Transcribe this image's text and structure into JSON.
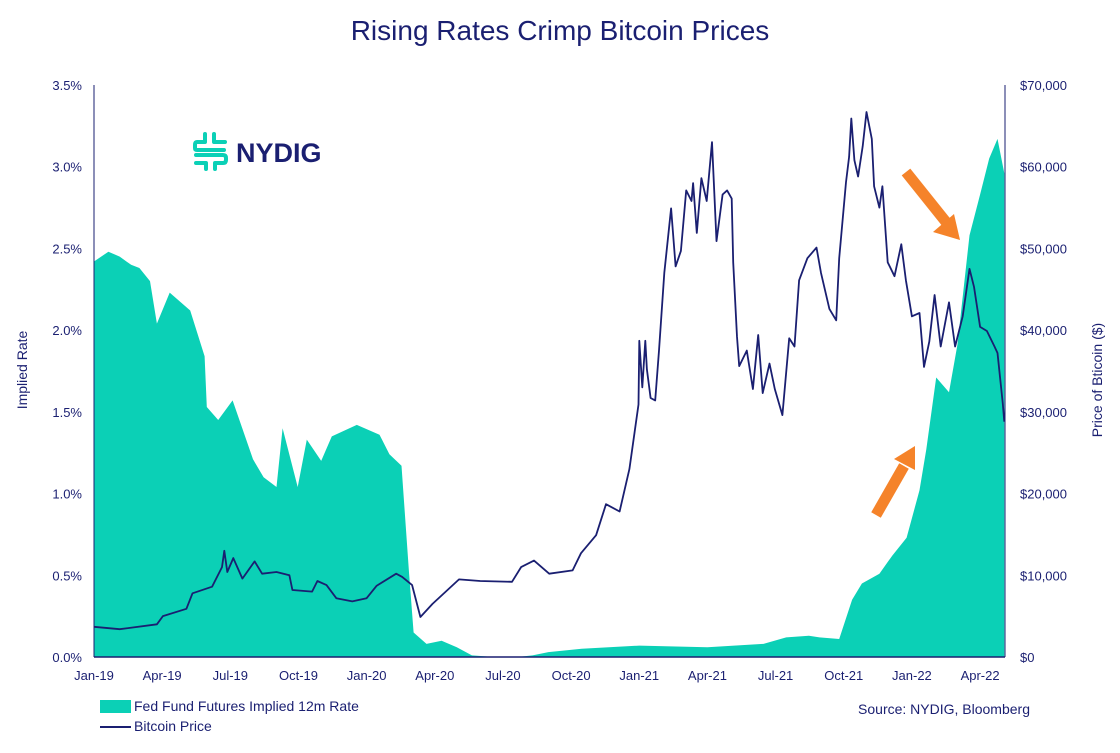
{
  "colors": {
    "navy": "#1a1f71",
    "teal": "#0bd0b6",
    "orange": "#f5832a"
  },
  "logo": {
    "text": "NYDIG",
    "icon": "nydig-logo-icon"
  },
  "source": "Source: NYDIG, Bloomberg",
  "chart_data": {
    "type": "area+line",
    "title": "Rising Rates Crimp Bitcoin Prices",
    "ylabel_left": "Implied Rate",
    "ylabel_right": "Price of Bticoin ($)",
    "xlim": [
      "2019-01-01",
      "2022-05-03"
    ],
    "ylim_left": [
      0,
      3.5
    ],
    "ylim_right": [
      0,
      70000
    ],
    "grid": false,
    "legend_position": "bottom-left",
    "x_tick_labels": [
      "Jan-19",
      "Apr-19",
      "Jul-19",
      "Oct-19",
      "Jan-20",
      "Apr-20",
      "Jul-20",
      "Oct-20",
      "Jan-21",
      "Apr-21",
      "Jul-21",
      "Oct-21",
      "Jan-22",
      "Apr-22"
    ],
    "y_left_tick_labels": [
      "0.0%",
      "0.5%",
      "1.0%",
      "1.5%",
      "2.0%",
      "2.5%",
      "3.0%",
      "3.5%"
    ],
    "y_right_tick_labels": [
      "$0",
      "$10,000",
      "$20,000",
      "$30,000",
      "$40,000",
      "$50,000",
      "$60,000",
      "$70,000"
    ],
    "series": [
      {
        "name": "Fed Fund Futures Implied 12m Rate",
        "type": "area",
        "axis": "left",
        "unit": "%",
        "points": [
          [
            "2019-01-01",
            2.42
          ],
          [
            "2019-01-20",
            2.48
          ],
          [
            "2019-02-05",
            2.45
          ],
          [
            "2019-02-20",
            2.4
          ],
          [
            "2019-03-01",
            2.38
          ],
          [
            "2019-03-15",
            2.3
          ],
          [
            "2019-03-24",
            2.04
          ],
          [
            "2019-04-11",
            2.23
          ],
          [
            "2019-05-08",
            2.12
          ],
          [
            "2019-05-27",
            1.84
          ],
          [
            "2019-05-30",
            1.53
          ],
          [
            "2019-06-15",
            1.45
          ],
          [
            "2019-07-04",
            1.57
          ],
          [
            "2019-08-01",
            1.21
          ],
          [
            "2019-08-15",
            1.1
          ],
          [
            "2019-09-02",
            1.04
          ],
          [
            "2019-09-10",
            1.4
          ],
          [
            "2019-09-30",
            1.04
          ],
          [
            "2019-10-12",
            1.33
          ],
          [
            "2019-11-01",
            1.2
          ],
          [
            "2019-11-15",
            1.35
          ],
          [
            "2019-12-18",
            1.42
          ],
          [
            "2020-01-18",
            1.36
          ],
          [
            "2020-02-01",
            1.24
          ],
          [
            "2020-02-17",
            1.17
          ],
          [
            "2020-02-27",
            0.51
          ],
          [
            "2020-03-03",
            0.15
          ],
          [
            "2020-03-20",
            0.08
          ],
          [
            "2020-04-10",
            0.1
          ],
          [
            "2020-04-30",
            0.06
          ],
          [
            "2020-05-20",
            0.01
          ],
          [
            "2020-06-20",
            0.0
          ],
          [
            "2020-07-20",
            0.0
          ],
          [
            "2020-08-10",
            0.01
          ],
          [
            "2020-09-01",
            0.03
          ],
          [
            "2020-10-15",
            0.05
          ],
          [
            "2021-01-01",
            0.07
          ],
          [
            "2021-04-01",
            0.06
          ],
          [
            "2021-06-15",
            0.08
          ],
          [
            "2021-07-15",
            0.12
          ],
          [
            "2021-08-15",
            0.13
          ],
          [
            "2021-08-29",
            0.12
          ],
          [
            "2021-09-25",
            0.11
          ],
          [
            "2021-10-12",
            0.35
          ],
          [
            "2021-10-25",
            0.45
          ],
          [
            "2021-11-18",
            0.51
          ],
          [
            "2021-12-05",
            0.62
          ],
          [
            "2021-12-24",
            0.73
          ],
          [
            "2022-01-11",
            1.02
          ],
          [
            "2022-01-20",
            1.27
          ],
          [
            "2022-02-03",
            1.71
          ],
          [
            "2022-02-20",
            1.62
          ],
          [
            "2022-03-01",
            1.91
          ],
          [
            "2022-03-17",
            2.58
          ],
          [
            "2022-04-01",
            2.83
          ],
          [
            "2022-04-13",
            3.05
          ],
          [
            "2022-04-24",
            3.17
          ],
          [
            "2022-05-03",
            2.96
          ]
        ]
      },
      {
        "name": "Bitcoin Price",
        "type": "line",
        "axis": "right",
        "unit": "$",
        "points": [
          [
            "2019-01-01",
            3700
          ],
          [
            "2019-02-05",
            3400
          ],
          [
            "2019-03-24",
            4000
          ],
          [
            "2019-04-02",
            5000
          ],
          [
            "2019-05-03",
            5900
          ],
          [
            "2019-05-11",
            7800
          ],
          [
            "2019-06-07",
            8600
          ],
          [
            "2019-06-20",
            11000
          ],
          [
            "2019-06-23",
            13000
          ],
          [
            "2019-06-27",
            10400
          ],
          [
            "2019-07-05",
            12100
          ],
          [
            "2019-07-17",
            9600
          ],
          [
            "2019-08-03",
            11700
          ],
          [
            "2019-08-13",
            10200
          ],
          [
            "2019-09-02",
            10400
          ],
          [
            "2019-09-19",
            10000
          ],
          [
            "2019-09-23",
            8200
          ],
          [
            "2019-10-19",
            8000
          ],
          [
            "2019-10-26",
            9300
          ],
          [
            "2019-11-08",
            8800
          ],
          [
            "2019-11-21",
            7200
          ],
          [
            "2019-12-12",
            6800
          ],
          [
            "2020-01-01",
            7200
          ],
          [
            "2020-01-14",
            8700
          ],
          [
            "2020-02-10",
            10200
          ],
          [
            "2020-02-18",
            9800
          ],
          [
            "2020-03-01",
            8800
          ],
          [
            "2020-03-12",
            4900
          ],
          [
            "2020-03-28",
            6500
          ],
          [
            "2020-05-03",
            9500
          ],
          [
            "2020-06-01",
            9300
          ],
          [
            "2020-07-13",
            9200
          ],
          [
            "2020-07-25",
            11000
          ],
          [
            "2020-08-12",
            11800
          ],
          [
            "2020-09-02",
            10200
          ],
          [
            "2020-10-03",
            10600
          ],
          [
            "2020-10-14",
            12700
          ],
          [
            "2020-11-04",
            14900
          ],
          [
            "2020-11-17",
            18700
          ],
          [
            "2020-12-05",
            17800
          ],
          [
            "2020-12-18",
            23000
          ],
          [
            "2020-12-30",
            30900
          ],
          [
            "2021-01-01",
            38700
          ],
          [
            "2021-01-05",
            33000
          ],
          [
            "2021-01-09",
            38700
          ],
          [
            "2021-01-11",
            35200
          ],
          [
            "2021-01-16",
            31700
          ],
          [
            "2021-01-22",
            31400
          ],
          [
            "2021-01-27",
            37500
          ],
          [
            "2021-02-04",
            47000
          ],
          [
            "2021-02-13",
            54900
          ],
          [
            "2021-02-19",
            47800
          ],
          [
            "2021-02-26",
            49700
          ],
          [
            "2021-03-03",
            57100
          ],
          [
            "2021-03-10",
            55800
          ],
          [
            "2021-03-12",
            58000
          ],
          [
            "2021-03-17",
            51900
          ],
          [
            "2021-03-23",
            58600
          ],
          [
            "2021-03-30",
            55800
          ],
          [
            "2021-04-07",
            63000
          ],
          [
            "2021-04-13",
            50900
          ],
          [
            "2021-04-21",
            56600
          ],
          [
            "2021-04-27",
            57100
          ],
          [
            "2021-05-03",
            56100
          ],
          [
            "2021-05-05",
            48300
          ],
          [
            "2021-05-10",
            39200
          ],
          [
            "2021-05-13",
            35600
          ],
          [
            "2021-05-23",
            37500
          ],
          [
            "2021-06-01",
            32800
          ],
          [
            "2021-06-08",
            39400
          ],
          [
            "2021-06-14",
            32300
          ],
          [
            "2021-06-23",
            35900
          ],
          [
            "2021-06-30",
            32800
          ],
          [
            "2021-07-10",
            29600
          ],
          [
            "2021-07-19",
            39000
          ],
          [
            "2021-07-26",
            38000
          ],
          [
            "2021-08-02",
            46100
          ],
          [
            "2021-08-13",
            48800
          ],
          [
            "2021-08-25",
            50100
          ],
          [
            "2021-09-01",
            47000
          ],
          [
            "2021-09-12",
            42600
          ],
          [
            "2021-09-21",
            41200
          ],
          [
            "2021-09-25",
            48800
          ],
          [
            "2021-10-04",
            58100
          ],
          [
            "2021-10-08",
            61200
          ],
          [
            "2021-10-11",
            65900
          ],
          [
            "2021-10-15",
            60800
          ],
          [
            "2021-10-20",
            58800
          ],
          [
            "2021-10-26",
            62500
          ],
          [
            "2021-11-01",
            66700
          ],
          [
            "2021-11-08",
            63400
          ],
          [
            "2021-11-11",
            57600
          ],
          [
            "2021-11-18",
            55000
          ],
          [
            "2021-11-22",
            57600
          ],
          [
            "2021-11-29",
            48300
          ],
          [
            "2021-12-08",
            46600
          ],
          [
            "2021-12-17",
            50500
          ],
          [
            "2021-12-23",
            46100
          ],
          [
            "2022-01-01",
            41700
          ],
          [
            "2022-01-11",
            42100
          ],
          [
            "2022-01-17",
            35500
          ],
          [
            "2022-01-24",
            38600
          ],
          [
            "2022-02-01",
            44300
          ],
          [
            "2022-02-09",
            38000
          ],
          [
            "2022-02-20",
            43400
          ],
          [
            "2022-02-28",
            38000
          ],
          [
            "2022-03-08",
            41700
          ],
          [
            "2022-03-17",
            47500
          ],
          [
            "2022-03-23",
            45300
          ],
          [
            "2022-04-01",
            40400
          ],
          [
            "2022-04-10",
            39900
          ],
          [
            "2022-04-20",
            38000
          ],
          [
            "2022-04-24",
            37200
          ],
          [
            "2022-05-01",
            31000
          ],
          [
            "2022-05-03",
            28800
          ]
        ]
      }
    ],
    "annotations": [
      {
        "type": "arrow",
        "color": "orange",
        "direction": "down-right",
        "target": "Bitcoin Price"
      },
      {
        "type": "arrow",
        "color": "orange",
        "direction": "up-right",
        "target": "Fed Fund Futures Implied 12m Rate"
      }
    ]
  }
}
